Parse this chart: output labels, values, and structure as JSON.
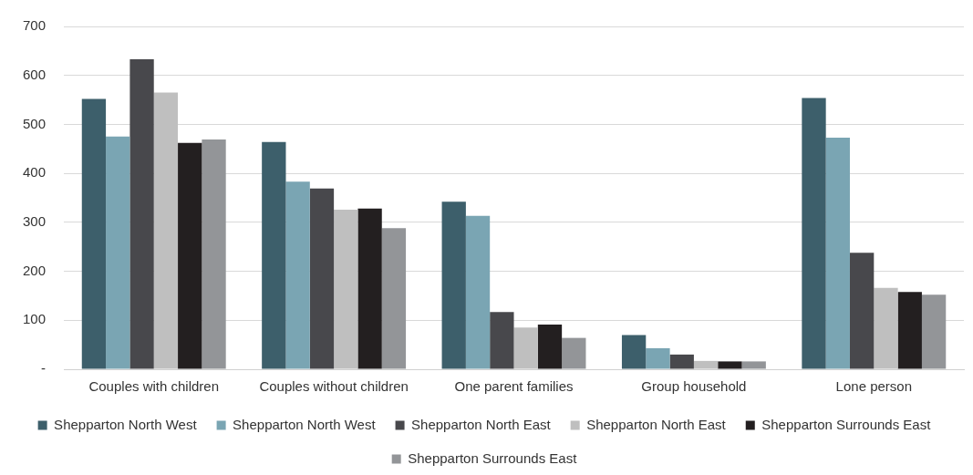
{
  "chart_data": {
    "type": "bar",
    "categories": [
      "Couples with children",
      "Couples without children",
      "One parent families",
      "Group household",
      "Lone person"
    ],
    "series": [
      {
        "name": "Shepparton North West",
        "color": "#3d5f6b",
        "values": [
          552,
          464,
          342,
          70,
          554
        ]
      },
      {
        "name": "Shepparton North West",
        "color": "#7aa5b3",
        "values": [
          475,
          383,
          313,
          43,
          473
        ]
      },
      {
        "name": "Shepparton North East",
        "color": "#48484c",
        "values": [
          633,
          369,
          117,
          30,
          238
        ]
      },
      {
        "name": "Shepparton North East",
        "color": "#bfbfbf",
        "values": [
          565,
          326,
          85,
          17,
          166
        ]
      },
      {
        "name": "Shepparton Surrounds East",
        "color": "#231f20",
        "values": [
          462,
          328,
          91,
          16,
          158
        ]
      },
      {
        "name": "Shepparton Surrounds East",
        "color": "#939598",
        "values": [
          469,
          288,
          64,
          16,
          152
        ]
      }
    ],
    "ylim": [
      0,
      700
    ],
    "yticks": [
      {
        "value": 0,
        "label": "-"
      },
      100,
      200,
      300,
      400,
      500,
      600,
      700
    ],
    "grid": "y",
    "legend": "bottom"
  }
}
